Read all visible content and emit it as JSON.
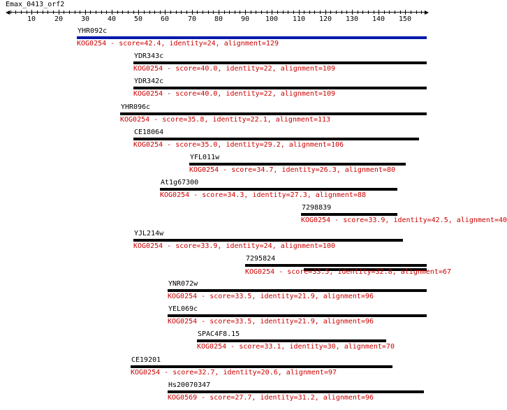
{
  "title": "Emax_0413_orf2",
  "colors": {
    "axis": "#000000",
    "bar_default": "#000000",
    "bar_highlight": "#0019a8",
    "description": "#cc0000"
  },
  "axis": {
    "min": 1,
    "max": 158,
    "labels": [
      10,
      20,
      30,
      40,
      50,
      60,
      70,
      80,
      90,
      100,
      110,
      120,
      130,
      140,
      150
    ]
  },
  "hits": [
    {
      "name": "YHR092c",
      "start": 27,
      "end": 158,
      "highlight": true,
      "description": "KOG0254 - score=42.4, identity=24, alignment=129"
    },
    {
      "name": "YDR343c",
      "start": 48,
      "end": 158,
      "description": "KOG0254 - score=40.0, identity=22, alignment=109"
    },
    {
      "name": "YDR342c",
      "start": 48,
      "end": 158,
      "description": "KOG0254 - score=40.0, identity=22, alignment=109"
    },
    {
      "name": "YHR096c",
      "start": 43,
      "end": 158,
      "description": "KOG0254 - score=35.8, identity=22.1, alignment=113"
    },
    {
      "name": "CE18064",
      "start": 48,
      "end": 155,
      "description": "KOG0254 - score=35.0, identity=29.2, alignment=106"
    },
    {
      "name": "YFL011w",
      "start": 69,
      "end": 150,
      "description": "KOG0254 - score=34.7, identity=26.3, alignment=80"
    },
    {
      "name": "At1g67300",
      "start": 58,
      "end": 147,
      "description": "KOG0254 - score=34.3, identity=27.3, alignment=88"
    },
    {
      "name": "7298839",
      "start": 111,
      "end": 147,
      "description": "KOG0254 - score=33.9, identity=42.5, alignment=40"
    },
    {
      "name": "YJL214w",
      "start": 48,
      "end": 149,
      "description": "KOG0254 - score=33.9, identity=24, alignment=100"
    },
    {
      "name": "7295824",
      "start": 90,
      "end": 158,
      "extra_segment": [
        112,
        158
      ],
      "description": "KOG0254 - score=33.5, identity=32.8, alignment=67"
    },
    {
      "name": "YNR072w",
      "start": 61,
      "end": 158,
      "description": "KOG0254 - score=33.5, identity=21.9, alignment=96"
    },
    {
      "name": "YEL069c",
      "start": 61,
      "end": 158,
      "description": "KOG0254 - score=33.5, identity=21.9, alignment=96"
    },
    {
      "name": "SPAC4F8.15",
      "start": 72,
      "end": 143,
      "description": "KOG0254 - score=33.1, identity=30, alignment=70"
    },
    {
      "name": "CE19201",
      "start": 47,
      "end": 145,
      "description": "KOG0254 - score=32.7, identity=20.6, alignment=97"
    },
    {
      "name": "Hs20070347",
      "start": 61,
      "end": 157,
      "description": "KOG0569 - score=27.7, identity=31.2, alignment=96"
    }
  ]
}
